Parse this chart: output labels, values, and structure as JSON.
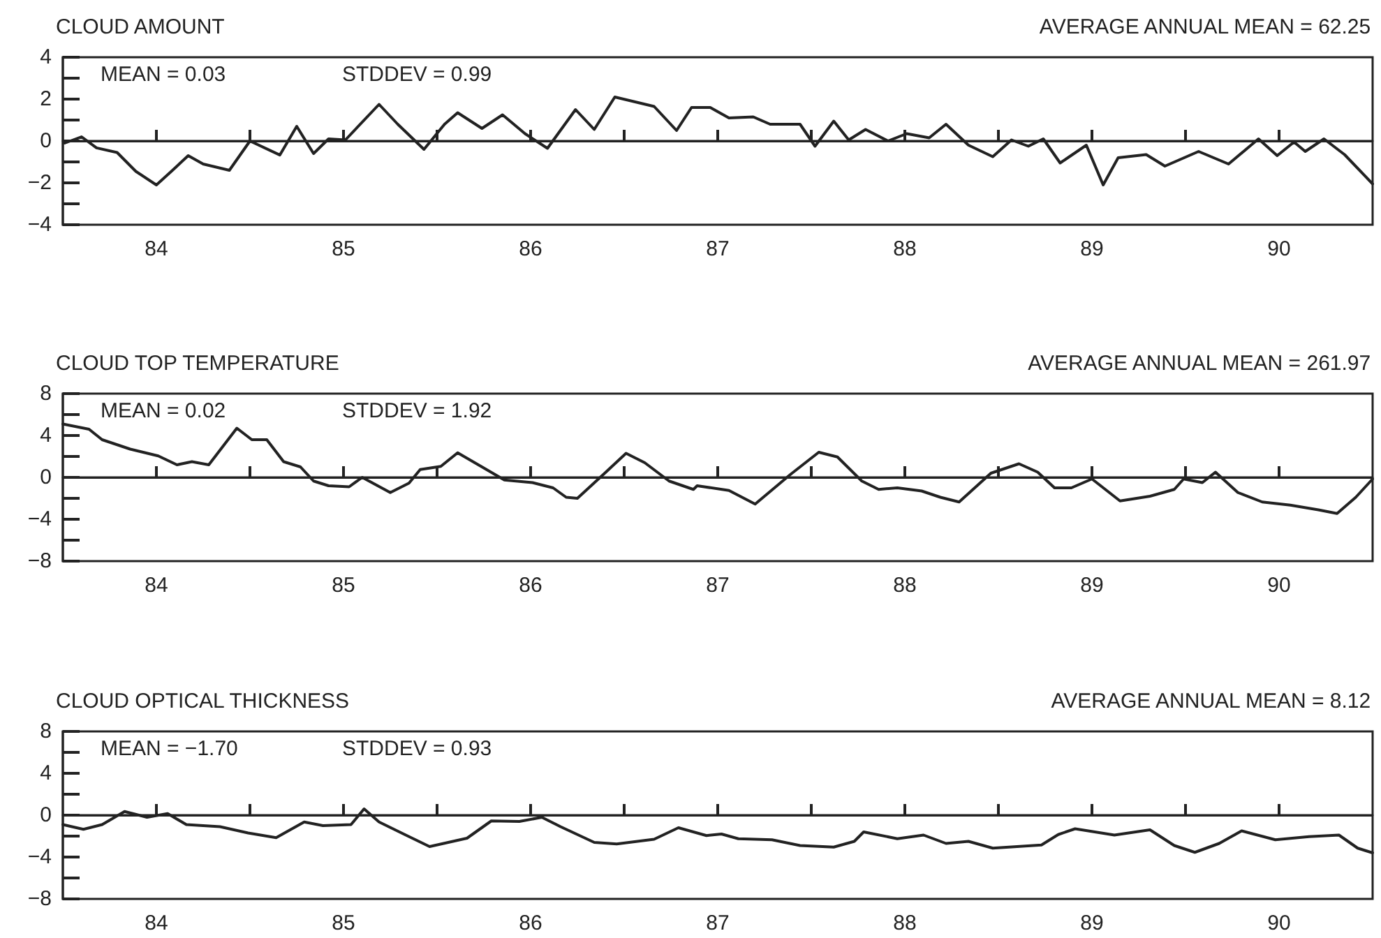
{
  "chart_data": [
    {
      "type": "line",
      "title": "CLOUD AMOUNT",
      "annotations": [
        "AVERAGE ANNUAL MEAN = 62.25",
        "MEAN = 0.03",
        "STDDEV = 0.99"
      ],
      "xlim": [
        1983.5,
        1990.5
      ],
      "xticks": [
        {
          "value": 1984,
          "label": "84"
        },
        {
          "value": 1984.5,
          "label": null
        },
        {
          "value": 1985,
          "label": "85"
        },
        {
          "value": 1985.5,
          "label": null
        },
        {
          "value": 1986,
          "label": "86"
        },
        {
          "value": 1986.5,
          "label": null
        },
        {
          "value": 1987,
          "label": "87"
        },
        {
          "value": 1987.5,
          "label": null
        },
        {
          "value": 1988,
          "label": "88"
        },
        {
          "value": 1988.5,
          "label": null
        },
        {
          "value": 1989,
          "label": "89"
        },
        {
          "value": 1989.5,
          "label": null
        },
        {
          "value": 1990,
          "label": "90"
        }
      ],
      "ylim": [
        -4,
        4
      ],
      "yticks": [
        -4,
        {
          "value": -3,
          "label": null
        },
        -2,
        {
          "value": -1,
          "label": null
        },
        0,
        {
          "value": 1,
          "label": null
        },
        2,
        {
          "value": 3,
          "label": null
        },
        4
      ],
      "grid": false,
      "marker": "none",
      "line_style": "solid",
      "ref_lines": [
        {
          "axis": "y",
          "value": 0,
          "color": "#222222"
        }
      ],
      "series": [
        {
          "color": "#222222",
          "x": [
            1983.51,
            1983.6,
            1983.68,
            1983.79,
            1983.89,
            1984.0,
            1984.08,
            1984.17,
            1984.25,
            1984.39,
            1984.5,
            1984.66,
            1984.75,
            1984.84,
            1984.92,
            1985.01,
            1985.19,
            1985.29,
            1985.43,
            1985.54,
            1985.61,
            1985.74,
            1985.85,
            1985.97,
            1986.09,
            1986.24,
            1986.34,
            1986.45,
            1986.66,
            1986.78,
            1986.86,
            1986.96,
            1987.06,
            1987.19,
            1987.28,
            1987.44,
            1987.52,
            1987.62,
            1987.7,
            1987.79,
            1987.91,
            1988.01,
            1988.13,
            1988.22,
            1988.34,
            1988.47,
            1988.57,
            1988.66,
            1988.74,
            1988.83,
            1988.97,
            1989.06,
            1989.14,
            1989.29,
            1989.39,
            1989.57,
            1989.73,
            1989.89,
            1989.99,
            1990.08,
            1990.14,
            1990.24,
            1990.35,
            1990.5
          ],
          "values": [
            -0.1,
            0.2,
            -0.33,
            -0.55,
            -1.45,
            -2.1,
            -1.45,
            -0.7,
            -1.1,
            -1.4,
            0.0,
            -0.67,
            0.7,
            -0.6,
            0.1,
            0.05,
            1.75,
            0.8,
            -0.4,
            0.8,
            1.35,
            0.6,
            1.25,
            0.35,
            -0.35,
            1.5,
            0.55,
            2.1,
            1.65,
            0.5,
            1.6,
            1.6,
            1.1,
            1.15,
            0.8,
            0.8,
            -0.25,
            0.95,
            0.05,
            0.55,
            0,
            0.35,
            0.15,
            0.8,
            -0.2,
            -0.75,
            0.05,
            -0.25,
            0.1,
            -1.05,
            -0.2,
            -2.1,
            -0.8,
            -0.65,
            -1.2,
            -0.5,
            -1.1,
            0.1,
            -0.7,
            -0.05,
            -0.5,
            0.1,
            -0.65,
            -2.05
          ]
        }
      ]
    },
    {
      "type": "line",
      "title": "CLOUD TOP TEMPERATURE",
      "annotations": [
        "AVERAGE ANNUAL MEAN = 261.97",
        "MEAN = 0.02",
        "STDDEV = 1.92"
      ],
      "xlim": [
        1983.5,
        1990.5
      ],
      "xticks": [
        {
          "value": 1984,
          "label": "84"
        },
        {
          "value": 1984.5,
          "label": null
        },
        {
          "value": 1985,
          "label": "85"
        },
        {
          "value": 1985.5,
          "label": null
        },
        {
          "value": 1986,
          "label": "86"
        },
        {
          "value": 1986.5,
          "label": null
        },
        {
          "value": 1987,
          "label": "87"
        },
        {
          "value": 1987.5,
          "label": null
        },
        {
          "value": 1988,
          "label": "88"
        },
        {
          "value": 1988.5,
          "label": null
        },
        {
          "value": 1989,
          "label": "89"
        },
        {
          "value": 1989.5,
          "label": null
        },
        {
          "value": 1990,
          "label": "90"
        }
      ],
      "ylim": [
        -8,
        8
      ],
      "yticks": [
        -8,
        {
          "value": -6,
          "label": null
        },
        -4,
        {
          "value": -2,
          "label": null
        },
        0,
        {
          "value": 2,
          "label": null
        },
        4,
        {
          "value": 6,
          "label": null
        },
        8
      ],
      "grid": false,
      "marker": "none",
      "line_style": "solid",
      "ref_lines": [
        {
          "axis": "y",
          "value": 0,
          "color": "#222222"
        }
      ],
      "series": [
        {
          "color": "#222222",
          "x": [
            1983.5,
            1983.64,
            1983.71,
            1983.86,
            1984.01,
            1984.11,
            1984.19,
            1984.28,
            1984.43,
            1984.51,
            1984.59,
            1984.68,
            1984.77,
            1984.84,
            1984.92,
            1985.03,
            1985.1,
            1985.25,
            1985.35,
            1985.41,
            1985.52,
            1985.61,
            1985.74,
            1985.86,
            1986.01,
            1986.12,
            1986.19,
            1986.25,
            1986.39,
            1986.51,
            1986.61,
            1986.74,
            1986.87,
            1986.89,
            1987.06,
            1987.2,
            1987.39,
            1987.54,
            1987.64,
            1987.77,
            1987.86,
            1987.96,
            1988.09,
            1988.19,
            1988.29,
            1988.46,
            1988.61,
            1988.71,
            1988.8,
            1988.89,
            1989.0,
            1989.15,
            1989.31,
            1989.44,
            1989.49,
            1989.59,
            1989.66,
            1989.78,
            1989.91,
            1990.06,
            1990.21,
            1990.31,
            1990.41,
            1990.5
          ],
          "values": [
            5.1,
            4.6,
            3.6,
            2.7,
            2.05,
            1.2,
            1.5,
            1.2,
            4.7,
            3.6,
            3.6,
            1.5,
            1.0,
            -0.35,
            -0.8,
            -0.9,
            0,
            -1.45,
            -0.55,
            0.75,
            1.05,
            2.35,
            1.0,
            -0.25,
            -0.5,
            -1.0,
            -1.9,
            -2.0,
            0.3,
            2.3,
            1.4,
            -0.35,
            -1.15,
            -0.8,
            -1.25,
            -2.55,
            0.3,
            2.4,
            1.95,
            -0.35,
            -1.15,
            -1.0,
            -1.3,
            -1.9,
            -2.35,
            0.4,
            1.3,
            0.5,
            -1.0,
            -1.0,
            -0.15,
            -2.25,
            -1.8,
            -1.15,
            -0.15,
            -0.5,
            0.5,
            -1.45,
            -2.35,
            -2.65,
            -3.1,
            -3.45,
            -1.9,
            -0.15
          ]
        }
      ]
    },
    {
      "type": "line",
      "title": "CLOUD OPTICAL THICKNESS",
      "annotations": [
        "AVERAGE ANNUAL MEAN = 8.12",
        "MEAN = −1.70",
        "STDDEV = 0.93"
      ],
      "xlim": [
        1983.5,
        1990.5
      ],
      "xticks": [
        {
          "value": 1984,
          "label": "84"
        },
        {
          "value": 1984.5,
          "label": null
        },
        {
          "value": 1985,
          "label": "85"
        },
        {
          "value": 1985.5,
          "label": null
        },
        {
          "value": 1986,
          "label": "86"
        },
        {
          "value": 1986.5,
          "label": null
        },
        {
          "value": 1987,
          "label": "87"
        },
        {
          "value": 1987.5,
          "label": null
        },
        {
          "value": 1988,
          "label": "88"
        },
        {
          "value": 1988.5,
          "label": null
        },
        {
          "value": 1989,
          "label": "89"
        },
        {
          "value": 1989.5,
          "label": null
        },
        {
          "value": 1990,
          "label": "90"
        }
      ],
      "ylim": [
        -8,
        8
      ],
      "yticks": [
        -8,
        {
          "value": -6,
          "label": null
        },
        -4,
        {
          "value": -2,
          "label": null
        },
        0,
        {
          "value": 2,
          "label": null
        },
        4,
        {
          "value": 6,
          "label": null
        },
        8
      ],
      "grid": false,
      "marker": "none",
      "line_style": "solid",
      "ref_lines": [
        {
          "axis": "y",
          "value": 0,
          "color": "#222222"
        }
      ],
      "series": [
        {
          "color": "#222222",
          "x": [
            1983.5,
            1983.61,
            1983.71,
            1983.83,
            1983.95,
            1984.06,
            1984.16,
            1984.34,
            1984.49,
            1984.64,
            1984.79,
            1984.89,
            1985.04,
            1985.11,
            1985.19,
            1985.31,
            1985.46,
            1985.66,
            1985.79,
            1985.94,
            1986.06,
            1986.16,
            1986.34,
            1986.46,
            1986.66,
            1986.79,
            1986.94,
            1987.02,
            1987.11,
            1987.29,
            1987.44,
            1987.62,
            1987.73,
            1987.78,
            1987.96,
            1988.1,
            1988.22,
            1988.34,
            1988.47,
            1988.73,
            1988.82,
            1988.91,
            1989.12,
            1989.31,
            1989.44,
            1989.55,
            1989.68,
            1989.8,
            1989.98,
            1990.16,
            1990.32,
            1990.42,
            1990.5
          ],
          "values": [
            -0.9,
            -1.35,
            -0.9,
            0.35,
            -0.2,
            0.15,
            -0.9,
            -1.1,
            -1.7,
            -2.15,
            -0.65,
            -1.0,
            -0.9,
            0.6,
            -0.65,
            -1.7,
            -3.0,
            -2.2,
            -0.55,
            -0.6,
            -0.2,
            -1.1,
            -2.6,
            -2.75,
            -2.3,
            -1.2,
            -1.95,
            -1.8,
            -2.25,
            -2.35,
            -2.9,
            -3.05,
            -2.5,
            -1.6,
            -2.25,
            -1.9,
            -2.7,
            -2.5,
            -3.15,
            -2.85,
            -1.85,
            -1.3,
            -1.9,
            -1.4,
            -2.9,
            -3.55,
            -2.7,
            -1.5,
            -2.35,
            -2.05,
            -1.9,
            -3.15,
            -3.6
          ]
        }
      ]
    }
  ]
}
